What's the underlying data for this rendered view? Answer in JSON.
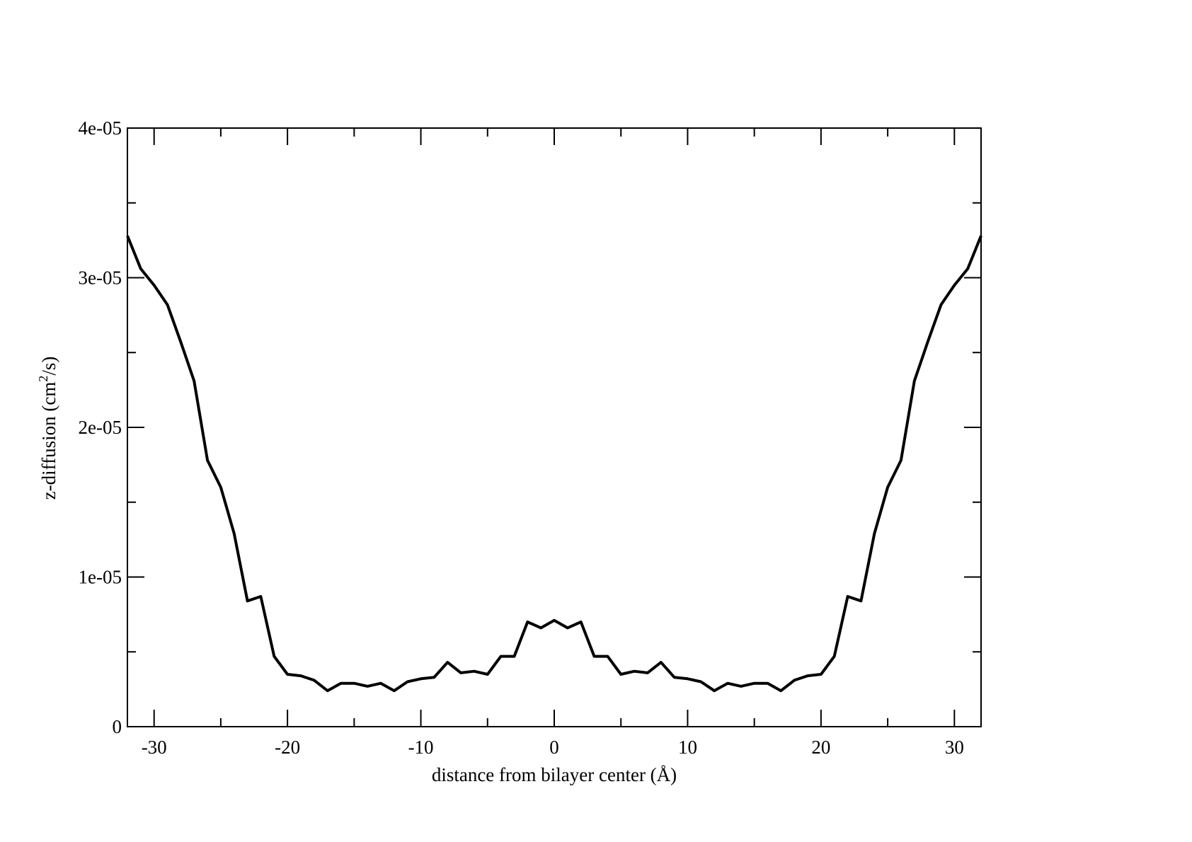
{
  "chart_data": {
    "type": "line",
    "xlabel": "distance from bilayer center (Å)",
    "ylabel_parts": {
      "before": "z-diffusion (cm",
      "sup": "2",
      "after": "/s)"
    },
    "xlim": [
      -32,
      32
    ],
    "ylim": [
      0,
      4e-05
    ],
    "x_major_ticks": [
      -30,
      -20,
      -10,
      0,
      10,
      20,
      30
    ],
    "x_tick_labels": [
      "-30",
      "-20",
      "-10",
      "0",
      "10",
      "20",
      "30"
    ],
    "x_minor_ticks": [
      -25,
      -15,
      -5,
      5,
      15,
      25
    ],
    "y_major_ticks": [
      0,
      1e-05,
      2e-05,
      3e-05,
      4e-05
    ],
    "y_tick_labels": [
      "0",
      "1e-05",
      "2e-05",
      "3e-05",
      "4e-05"
    ],
    "y_minor_ticks": [
      5e-06,
      1.5e-05,
      2.5e-05,
      3.5e-05
    ],
    "grid": false,
    "line_color": "#000000",
    "series": [
      {
        "x": [
          -32,
          -31,
          -30,
          -29,
          -28,
          -27,
          -26,
          -25,
          -24,
          -23,
          -22,
          -21,
          -20,
          -19,
          -18,
          -17,
          -16,
          -15,
          -14,
          -13,
          -12,
          -11,
          -10,
          -9,
          -8,
          -7,
          -6,
          -5,
          -4,
          -3,
          -2,
          -1,
          0,
          1,
          2,
          3,
          4,
          5,
          6,
          7,
          8,
          9,
          10,
          11,
          12,
          13,
          14,
          15,
          16,
          17,
          18,
          19,
          20,
          21,
          22,
          23,
          24,
          25,
          26,
          27,
          28,
          29,
          30,
          31,
          32
        ],
        "y": [
          3.28e-05,
          3.06e-05,
          2.95e-05,
          2.82e-05,
          2.57e-05,
          2.31e-05,
          1.78e-05,
          1.6e-05,
          1.29e-05,
          8.4e-06,
          8.7e-06,
          4.7e-06,
          3.5e-06,
          3.4e-06,
          3.1e-06,
          2.4e-06,
          2.9e-06,
          2.9e-06,
          2.7e-06,
          2.9e-06,
          2.4e-06,
          3e-06,
          3.2e-06,
          3.3e-06,
          4.3e-06,
          3.6e-06,
          3.7e-06,
          3.5e-06,
          4.7e-06,
          4.7e-06,
          7e-06,
          6.6e-06,
          7.1e-06,
          6.6e-06,
          7e-06,
          4.7e-06,
          4.7e-06,
          3.5e-06,
          3.7e-06,
          3.6e-06,
          4.3e-06,
          3.3e-06,
          3.2e-06,
          3e-06,
          2.4e-06,
          2.9e-06,
          2.7e-06,
          2.9e-06,
          2.9e-06,
          2.4e-06,
          3.1e-06,
          3.4e-06,
          3.5e-06,
          4.7e-06,
          8.7e-06,
          8.4e-06,
          1.29e-05,
          1.6e-05,
          1.78e-05,
          2.31e-05,
          2.57e-05,
          2.82e-05,
          2.95e-05,
          3.06e-05,
          3.28e-05
        ]
      }
    ]
  }
}
